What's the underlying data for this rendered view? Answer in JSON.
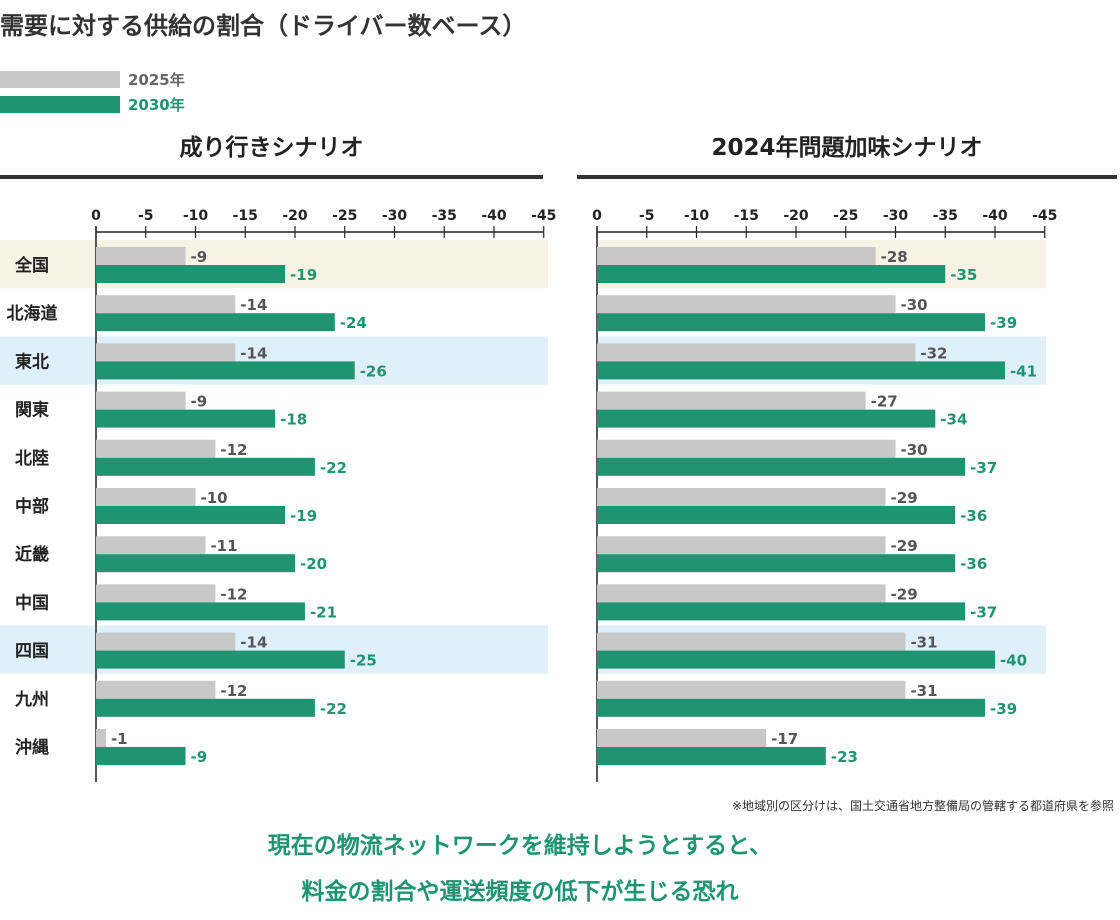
{
  "title": "需要に対する供給の割合（ドライバー数ベース）",
  "legend": [
    {
      "label": "2025年",
      "color": "#c8c8c8",
      "text_color": "#666666"
    },
    {
      "label": "2030年",
      "color": "#1e9470",
      "text_color": "#1e9470"
    }
  ],
  "colors": {
    "series_2025": "#c8c8c8",
    "series_2030": "#1e9470",
    "label_2025": "#555555",
    "label_2030": "#1e9470",
    "highlight_beige": "#f6f3e4",
    "highlight_blue": "#dff0fb"
  },
  "chart_data": [
    {
      "type": "bar",
      "title": "成り行きシナリオ",
      "orientation": "horizontal",
      "categories": [
        "全国",
        "北海道",
        "東北",
        "関東",
        "北陸",
        "中部",
        "近畿",
        "中国",
        "四国",
        "九州",
        "沖縄"
      ],
      "series": [
        {
          "name": "2025年",
          "values": [
            -9,
            -14,
            -14,
            -9,
            -12,
            -10,
            -11,
            -12,
            -14,
            -12,
            -1
          ]
        },
        {
          "name": "2030年",
          "values": [
            -19,
            -24,
            -26,
            -18,
            -22,
            -19,
            -20,
            -21,
            -25,
            -22,
            -9
          ]
        }
      ],
      "xlim": [
        0,
        -45
      ],
      "ticks": [
        "0",
        "-5",
        "-10",
        "-15",
        "-20",
        "-25",
        "-30",
        "-35",
        "-40",
        "-45"
      ],
      "highlights": {
        "全国": "beige",
        "東北": "blue",
        "四国": "blue"
      }
    },
    {
      "type": "bar",
      "title": "2024年問題加味シナリオ",
      "orientation": "horizontal",
      "categories": [
        "全国",
        "北海道",
        "東北",
        "関東",
        "北陸",
        "中部",
        "近畿",
        "中国",
        "四国",
        "九州",
        "沖縄"
      ],
      "series": [
        {
          "name": "2025年",
          "values": [
            -28,
            -30,
            -32,
            -27,
            -30,
            -29,
            -29,
            -29,
            -31,
            -31,
            -17
          ]
        },
        {
          "name": "2030年",
          "values": [
            -35,
            -39,
            -41,
            -34,
            -37,
            -36,
            -36,
            -37,
            -40,
            -39,
            -23
          ]
        }
      ],
      "xlim": [
        0,
        -45
      ],
      "ticks": [
        "0",
        "-5",
        "-10",
        "-15",
        "-20",
        "-25",
        "-30",
        "-35",
        "-40",
        "-45"
      ],
      "highlights": {
        "全国": "beige",
        "東北": "blue",
        "四国": "blue"
      }
    }
  ],
  "footnote": "※地域別の区分けは、国土交通省地方整備局の管轄する都道府県を参照",
  "message": {
    "line1": "現在の物流ネットワークを維持しようとすると、",
    "line2": "料金の割合や運送頻度の低下が生じる恐れ"
  }
}
